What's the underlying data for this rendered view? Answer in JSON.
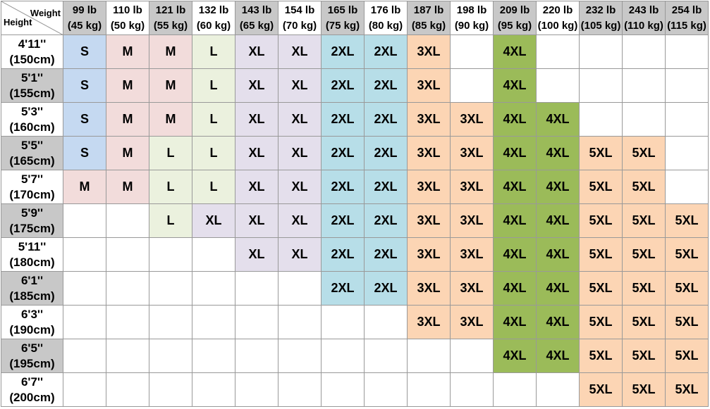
{
  "table": {
    "corner": {
      "top": "Weight",
      "bottom": "Height"
    },
    "weights": [
      {
        "lb": "99 lb",
        "kg": "(45 kg)",
        "shaded": true
      },
      {
        "lb": "110 lb",
        "kg": "(50 kg)",
        "shaded": false
      },
      {
        "lb": "121 lb",
        "kg": "(55 kg)",
        "shaded": true
      },
      {
        "lb": "132 lb",
        "kg": "(60 kg)",
        "shaded": false
      },
      {
        "lb": "143 lb",
        "kg": "(65 kg)",
        "shaded": true
      },
      {
        "lb": "154 lb",
        "kg": "(70 kg)",
        "shaded": false
      },
      {
        "lb": "165 lb",
        "kg": "(75 kg)",
        "shaded": true
      },
      {
        "lb": "176 lb",
        "kg": "(80 kg)",
        "shaded": false
      },
      {
        "lb": "187 lb",
        "kg": "(85 kg)",
        "shaded": true
      },
      {
        "lb": "198 lb",
        "kg": "(90 kg)",
        "shaded": false
      },
      {
        "lb": "209 lb",
        "kg": "(95 kg)",
        "shaded": true
      },
      {
        "lb": "220 lb",
        "kg": "(100 kg)",
        "shaded": false
      },
      {
        "lb": "232 lb",
        "kg": "(105 kg)",
        "shaded": true
      },
      {
        "lb": "243 lb",
        "kg": "(110 kg)",
        "shaded": true
      },
      {
        "lb": "254 lb",
        "kg": "(115 kg)",
        "shaded": true
      }
    ],
    "size_colors": {
      "S": "#c5d9f1",
      "M": "#f2dcdb",
      "L": "#ebf1de",
      "XL": "#e4dfec",
      "2XL": "#b7dee8",
      "3XL": "#fcd5b4",
      "4XL": "#9bbb59",
      "5XL": "#fcd5b4"
    },
    "rows": [
      {
        "ft": "4'11''",
        "cm": "(150cm)",
        "shaded": false,
        "sizes": [
          "S",
          "M",
          "M",
          "L",
          "XL",
          "XL",
          "2XL",
          "2XL",
          "3XL",
          null,
          "4XL",
          null,
          null,
          null,
          null
        ]
      },
      {
        "ft": "5'1''",
        "cm": "(155cm)",
        "shaded": true,
        "sizes": [
          "S",
          "M",
          "M",
          "L",
          "XL",
          "XL",
          "2XL",
          "2XL",
          "3XL",
          null,
          "4XL",
          null,
          null,
          null,
          null
        ]
      },
      {
        "ft": "5'3''",
        "cm": "(160cm)",
        "shaded": false,
        "sizes": [
          "S",
          "M",
          "M",
          "L",
          "XL",
          "XL",
          "2XL",
          "2XL",
          "3XL",
          "3XL",
          "4XL",
          "4XL",
          null,
          null,
          null
        ]
      },
      {
        "ft": "5'5''",
        "cm": "(165cm)",
        "shaded": true,
        "sizes": [
          "S",
          "M",
          "L",
          "L",
          "XL",
          "XL",
          "2XL",
          "2XL",
          "3XL",
          "3XL",
          "4XL",
          "4XL",
          "5XL",
          "5XL",
          null
        ]
      },
      {
        "ft": "5'7''",
        "cm": "(170cm)",
        "shaded": false,
        "sizes": [
          "M",
          "M",
          "L",
          "L",
          "XL",
          "XL",
          "2XL",
          "2XL",
          "3XL",
          "3XL",
          "4XL",
          "4XL",
          "5XL",
          "5XL",
          null
        ]
      },
      {
        "ft": "5'9''",
        "cm": "(175cm)",
        "shaded": true,
        "sizes": [
          null,
          null,
          "L",
          "XL",
          "XL",
          "XL",
          "2XL",
          "2XL",
          "3XL",
          "3XL",
          "4XL",
          "4XL",
          "5XL",
          "5XL",
          "5XL"
        ]
      },
      {
        "ft": "5'11''",
        "cm": "(180cm)",
        "shaded": false,
        "sizes": [
          null,
          null,
          null,
          null,
          "XL",
          "XL",
          "2XL",
          "2XL",
          "3XL",
          "3XL",
          "4XL",
          "4XL",
          "5XL",
          "5XL",
          "5XL"
        ]
      },
      {
        "ft": "6'1''",
        "cm": "(185cm)",
        "shaded": true,
        "sizes": [
          null,
          null,
          null,
          null,
          null,
          null,
          "2XL",
          "2XL",
          "3XL",
          "3XL",
          "4XL",
          "4XL",
          "5XL",
          "5XL",
          "5XL"
        ]
      },
      {
        "ft": "6'3''",
        "cm": "(190cm)",
        "shaded": false,
        "sizes": [
          null,
          null,
          null,
          null,
          null,
          null,
          null,
          null,
          "3XL",
          "3XL",
          "4XL",
          "4XL",
          "5XL",
          "5XL",
          "5XL"
        ]
      },
      {
        "ft": "6'5''",
        "cm": "(195cm)",
        "shaded": true,
        "sizes": [
          null,
          null,
          null,
          null,
          null,
          null,
          null,
          null,
          null,
          null,
          "4XL",
          "4XL",
          "5XL",
          "5XL",
          "5XL"
        ]
      },
      {
        "ft": "6'7''",
        "cm": "(200cm)",
        "shaded": false,
        "sizes": [
          null,
          null,
          null,
          null,
          null,
          null,
          null,
          null,
          null,
          null,
          null,
          null,
          "5XL",
          "5XL",
          "5XL"
        ]
      }
    ]
  }
}
